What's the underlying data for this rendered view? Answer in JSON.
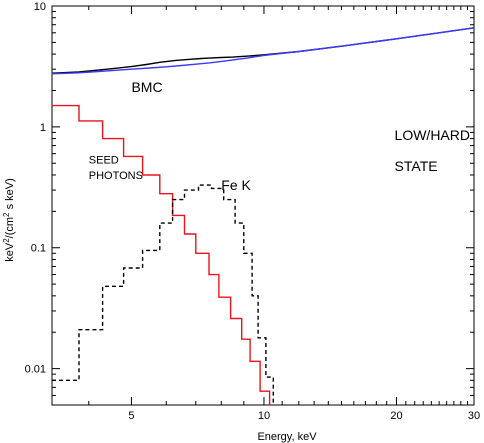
{
  "chart_data": {
    "type": "line",
    "xlabel": "Energy, keV",
    "ylabel_parts": {
      "base": "keV",
      "sup1": "2",
      "mid": "/(cm",
      "sup2": "2",
      "end": " s keV)"
    },
    "xscale": "log",
    "yscale": "log",
    "xlim": [
      3.3,
      30
    ],
    "ylim": [
      0.005,
      10
    ],
    "grid": false,
    "x_tick_labels": [
      {
        "x": 5,
        "label": "5"
      },
      {
        "x": 10,
        "label": "10"
      },
      {
        "x": 20,
        "label": "20"
      },
      {
        "x": 30,
        "label": "30"
      }
    ],
    "y_tick_labels": [
      {
        "y": 10,
        "label": "10"
      },
      {
        "y": 1,
        "label": "1"
      },
      {
        "y": 0.1,
        "label": "0.1"
      },
      {
        "y": 0.01,
        "label": "0.01"
      }
    ],
    "annotations": [
      {
        "text": "BMC",
        "x": 5.0,
        "y": 1.95,
        "size": 14
      },
      {
        "text": "SEED",
        "x": 4.0,
        "y": 0.5,
        "size": 11
      },
      {
        "text": "PHOTONS",
        "x": 4.0,
        "y": 0.37,
        "size": 11
      },
      {
        "text": "Fe K",
        "x": 8.0,
        "y": 0.3,
        "size": 14
      },
      {
        "text": "LOW/HARD",
        "x": 19.8,
        "y": 0.78,
        "size": 14
      },
      {
        "text": "STATE",
        "x": 19.8,
        "y": 0.43,
        "size": 14
      }
    ],
    "series": [
      {
        "color": "#000000",
        "style": "solid",
        "points": [
          [
            3.3,
            2.78
          ],
          [
            3.8,
            2.85
          ],
          [
            4.2,
            2.95
          ],
          [
            4.6,
            3.05
          ],
          [
            5.0,
            3.15
          ],
          [
            5.4,
            3.28
          ],
          [
            5.8,
            3.42
          ],
          [
            6.3,
            3.55
          ],
          [
            6.8,
            3.62
          ],
          [
            7.2,
            3.68
          ],
          [
            7.6,
            3.72
          ],
          [
            8.0,
            3.75
          ],
          [
            8.5,
            3.78
          ],
          [
            9.2,
            3.85
          ],
          [
            10,
            3.95
          ],
          [
            12,
            4.2
          ],
          [
            15,
            4.65
          ],
          [
            20,
            5.35
          ],
          [
            25,
            6.0
          ],
          [
            30,
            6.6
          ]
        ]
      },
      {
        "color": "#3a3aff",
        "style": "solid",
        "points": [
          [
            3.3,
            2.75
          ],
          [
            3.8,
            2.8
          ],
          [
            4.2,
            2.87
          ],
          [
            4.6,
            2.94
          ],
          [
            5.0,
            3.0
          ],
          [
            5.5,
            3.07
          ],
          [
            6.0,
            3.14
          ],
          [
            6.5,
            3.22
          ],
          [
            7.0,
            3.3
          ],
          [
            7.5,
            3.38
          ],
          [
            8.0,
            3.48
          ],
          [
            8.5,
            3.58
          ],
          [
            9.2,
            3.72
          ],
          [
            10,
            3.9
          ],
          [
            12,
            4.2
          ],
          [
            15,
            4.65
          ],
          [
            20,
            5.35
          ],
          [
            25,
            6.0
          ],
          [
            30,
            6.6
          ]
        ]
      },
      {
        "color": "#e8141e",
        "style": "step",
        "points": [
          [
            3.3,
            1.5
          ],
          [
            3.8,
            1.5
          ],
          [
            3.8,
            1.12
          ],
          [
            4.3,
            1.12
          ],
          [
            4.3,
            0.8
          ],
          [
            4.8,
            0.8
          ],
          [
            4.8,
            0.57
          ],
          [
            5.3,
            0.57
          ],
          [
            5.3,
            0.4
          ],
          [
            5.8,
            0.4
          ],
          [
            5.8,
            0.28
          ],
          [
            6.2,
            0.28
          ],
          [
            6.2,
            0.185
          ],
          [
            6.6,
            0.185
          ],
          [
            6.6,
            0.13
          ],
          [
            7.0,
            0.13
          ],
          [
            7.0,
            0.09
          ],
          [
            7.5,
            0.09
          ],
          [
            7.5,
            0.06
          ],
          [
            7.9,
            0.06
          ],
          [
            7.9,
            0.039
          ],
          [
            8.4,
            0.039
          ],
          [
            8.4,
            0.026
          ],
          [
            8.9,
            0.026
          ],
          [
            8.9,
            0.0175
          ],
          [
            9.3,
            0.0175
          ],
          [
            9.3,
            0.0115
          ],
          [
            9.8,
            0.0115
          ],
          [
            9.8,
            0.0065
          ],
          [
            10.3,
            0.0065
          ],
          [
            10.3,
            0.005
          ]
        ]
      },
      {
        "color": "#000000",
        "style": "dashed-step",
        "points": [
          [
            3.3,
            0.008
          ],
          [
            3.8,
            0.008
          ],
          [
            3.8,
            0.021
          ],
          [
            4.3,
            0.021
          ],
          [
            4.3,
            0.048
          ],
          [
            4.8,
            0.048
          ],
          [
            4.8,
            0.068
          ],
          [
            5.3,
            0.068
          ],
          [
            5.3,
            0.095
          ],
          [
            5.8,
            0.095
          ],
          [
            5.8,
            0.16
          ],
          [
            6.2,
            0.16
          ],
          [
            6.2,
            0.25
          ],
          [
            6.6,
            0.25
          ],
          [
            6.6,
            0.3
          ],
          [
            7.1,
            0.3
          ],
          [
            7.1,
            0.33
          ],
          [
            7.6,
            0.33
          ],
          [
            7.6,
            0.31
          ],
          [
            8.1,
            0.31
          ],
          [
            8.1,
            0.25
          ],
          [
            8.6,
            0.25
          ],
          [
            8.6,
            0.16
          ],
          [
            9.0,
            0.16
          ],
          [
            9.0,
            0.09
          ],
          [
            9.4,
            0.09
          ],
          [
            9.4,
            0.04
          ],
          [
            9.7,
            0.04
          ],
          [
            9.7,
            0.018
          ],
          [
            10.1,
            0.018
          ],
          [
            10.1,
            0.0085
          ],
          [
            10.5,
            0.0085
          ],
          [
            10.5,
            0.005
          ]
        ]
      }
    ]
  }
}
